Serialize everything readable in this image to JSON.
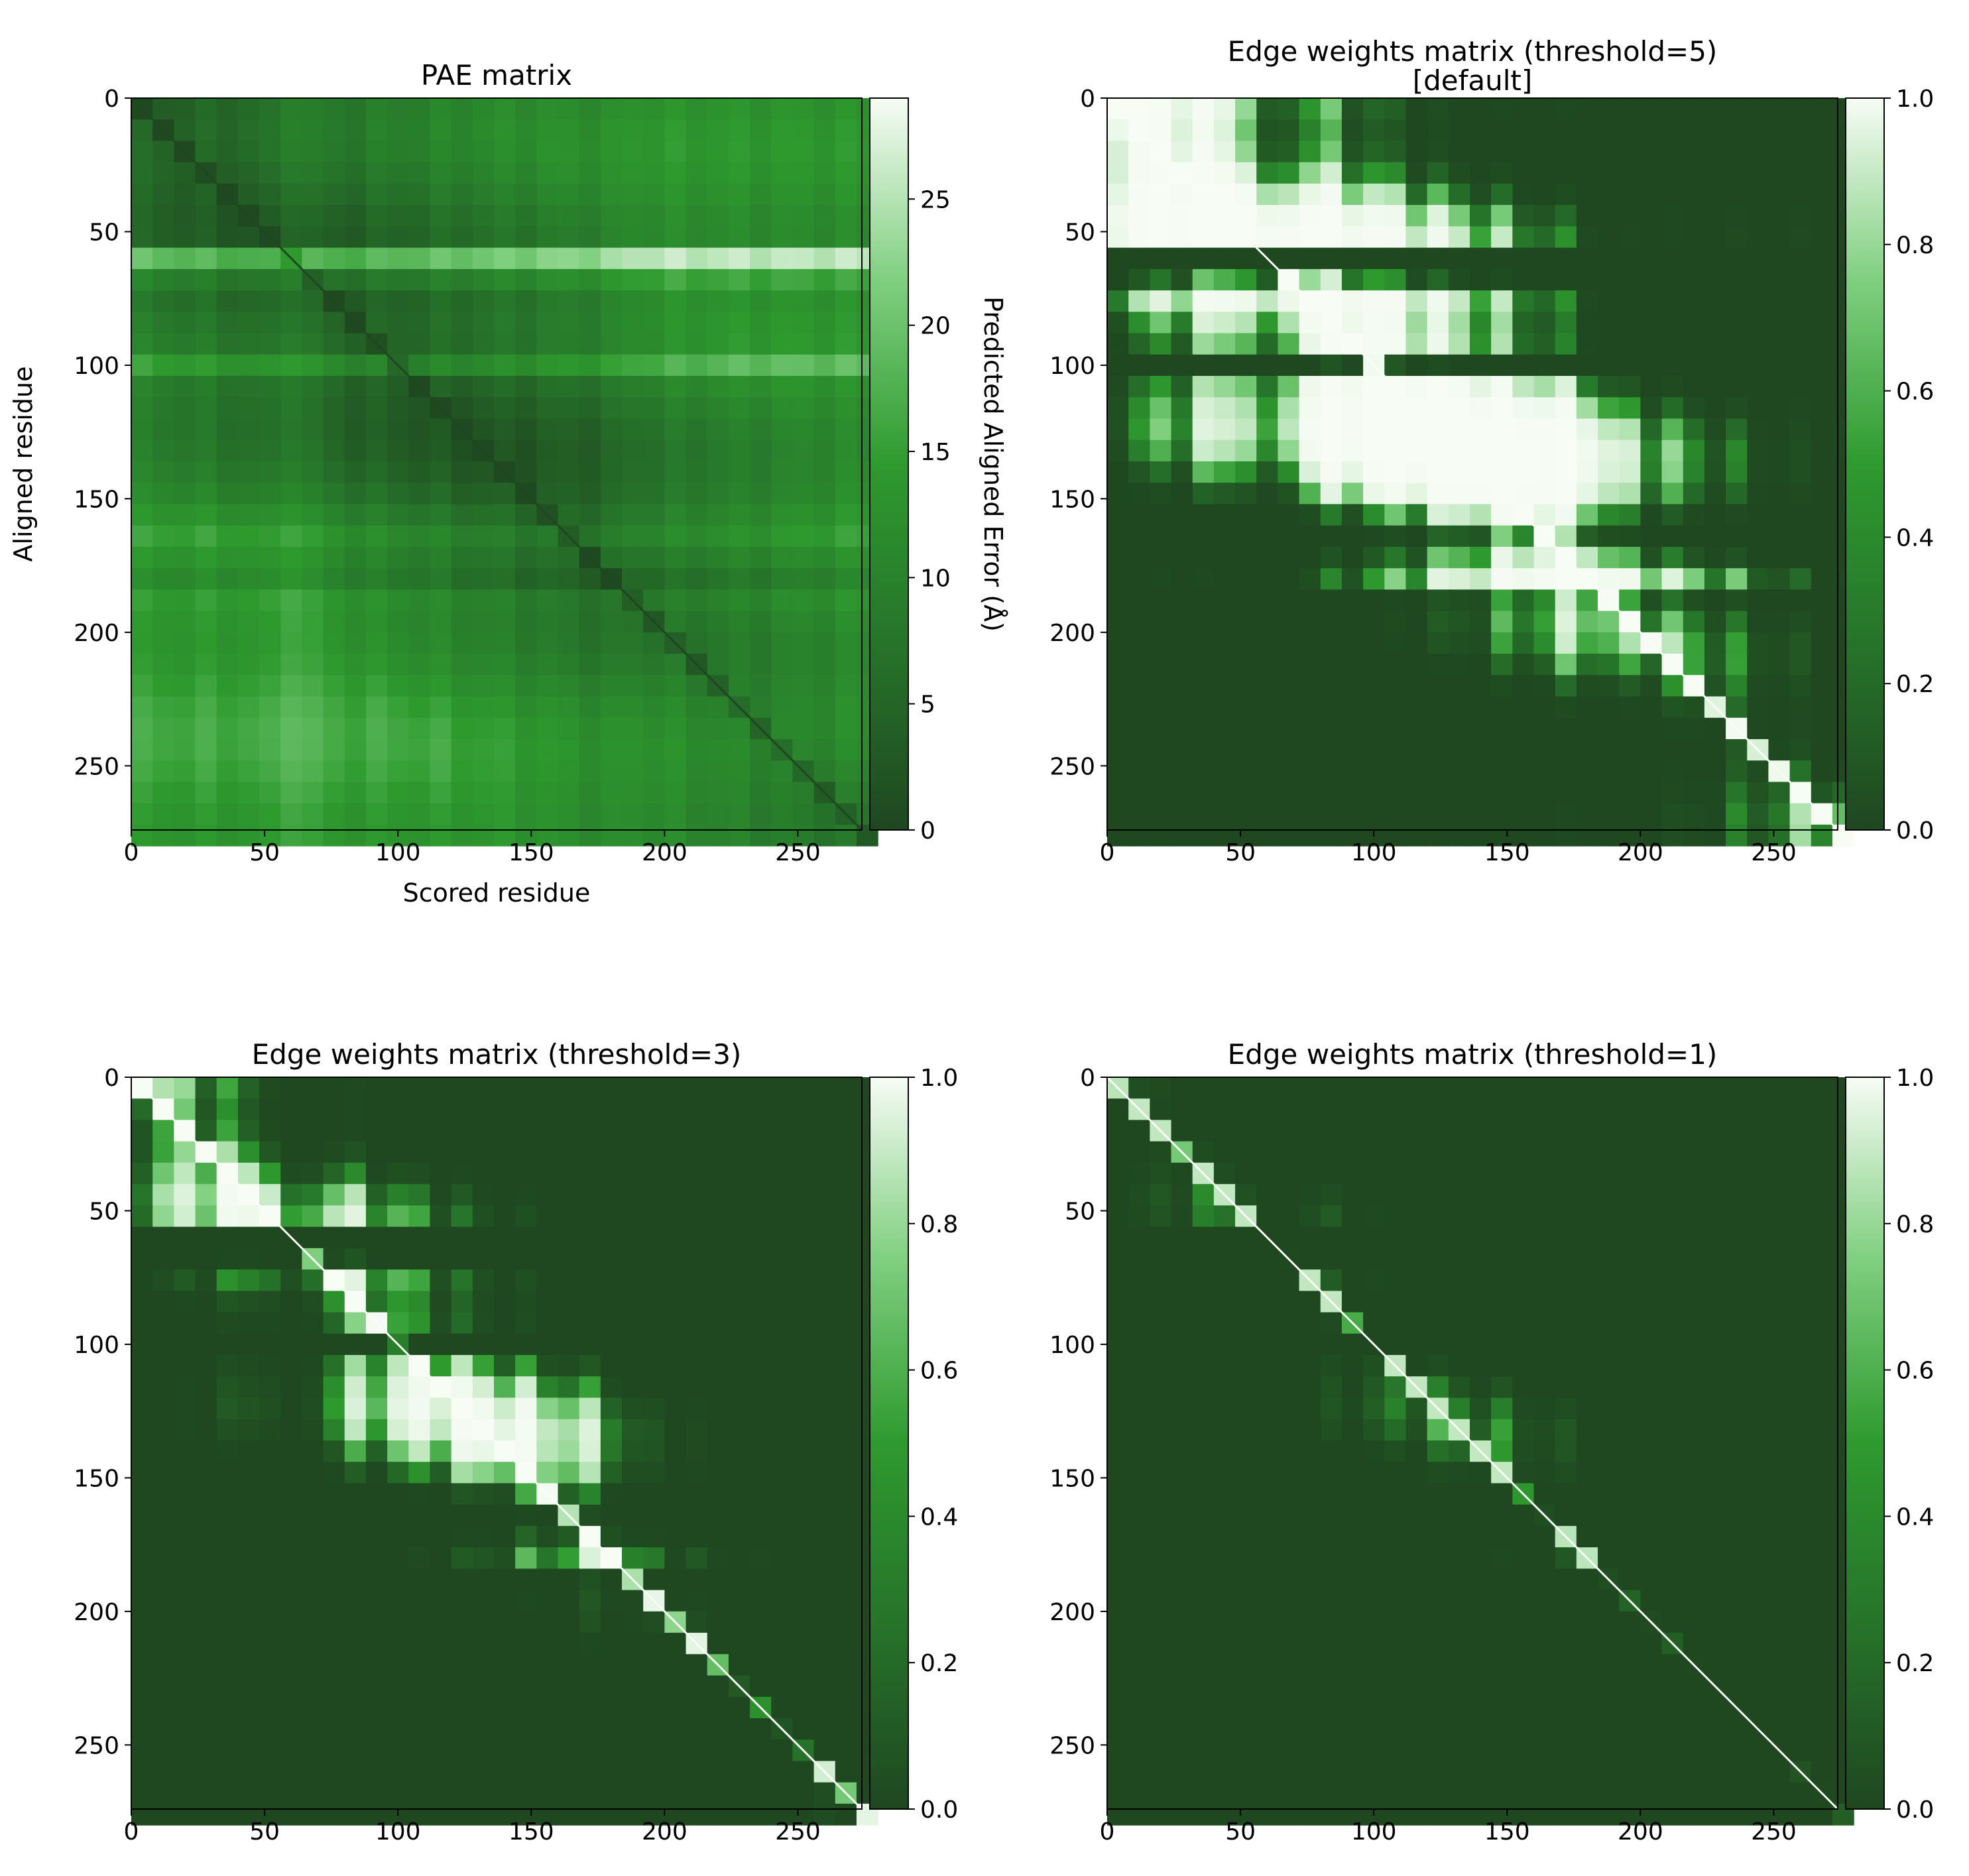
{
  "colors": {
    "cmap_low": "#1f4720",
    "cmap_mid": "#2e9a2e",
    "cmap_high": "#f7fcf5",
    "axis": "#000000",
    "background": "#ffffff"
  },
  "chart_data": [
    {
      "type": "heatmap",
      "title": "PAE matrix",
      "xlabel": "Scored residue",
      "ylabel": "Aligned residue",
      "colorbar_label": "Predicted Aligned Error (Å)",
      "n_residues": 274,
      "xlim": [
        0,
        274
      ],
      "ylim": [
        274,
        0
      ],
      "xticks": [
        "0",
        "50",
        "100",
        "150",
        "200",
        "250"
      ],
      "yticks": [
        "0",
        "50",
        "100",
        "150",
        "200",
        "250"
      ],
      "colorbar_ticks": [
        "0",
        "5",
        "10",
        "15",
        "20",
        "25"
      ],
      "colorbar_range": [
        0,
        29
      ],
      "matrix_kind": "pae"
    },
    {
      "type": "heatmap",
      "title": "Edge weights matrix (threshold=5)",
      "subtitle": "[default]",
      "xlabel": "",
      "ylabel": "",
      "colorbar_label": "",
      "n_residues": 274,
      "threshold": 5,
      "xlim": [
        0,
        274
      ],
      "ylim": [
        274,
        0
      ],
      "xticks": [
        "0",
        "50",
        "100",
        "150",
        "200",
        "250"
      ],
      "yticks": [
        "0",
        "50",
        "100",
        "150",
        "200",
        "250"
      ],
      "colorbar_ticks": [
        "0.0",
        "0.2",
        "0.4",
        "0.6",
        "0.8",
        "1.0"
      ],
      "colorbar_range": [
        0,
        1
      ],
      "matrix_kind": "weights"
    },
    {
      "type": "heatmap",
      "title": "Edge weights matrix (threshold=3)",
      "xlabel": "",
      "ylabel": "",
      "colorbar_label": "",
      "n_residues": 274,
      "threshold": 3,
      "xlim": [
        0,
        274
      ],
      "ylim": [
        274,
        0
      ],
      "xticks": [
        "0",
        "50",
        "100",
        "150",
        "200",
        "250"
      ],
      "yticks": [
        "0",
        "50",
        "100",
        "150",
        "200",
        "250"
      ],
      "colorbar_ticks": [
        "0.0",
        "0.2",
        "0.4",
        "0.6",
        "0.8",
        "1.0"
      ],
      "colorbar_range": [
        0,
        1
      ],
      "matrix_kind": "weights"
    },
    {
      "type": "heatmap",
      "title": "Edge weights matrix (threshold=1)",
      "xlabel": "",
      "ylabel": "",
      "colorbar_label": "",
      "n_residues": 274,
      "threshold": 1,
      "xlim": [
        0,
        274
      ],
      "ylim": [
        274,
        0
      ],
      "xticks": [
        "0",
        "50",
        "100",
        "150",
        "200",
        "250"
      ],
      "yticks": [
        "0",
        "50",
        "100",
        "150",
        "200",
        "250"
      ],
      "colorbar_ticks": [
        "0.0",
        "0.2",
        "0.4",
        "0.6",
        "0.8",
        "1.0"
      ],
      "colorbar_range": [
        0,
        1
      ],
      "matrix_kind": "weights"
    }
  ]
}
